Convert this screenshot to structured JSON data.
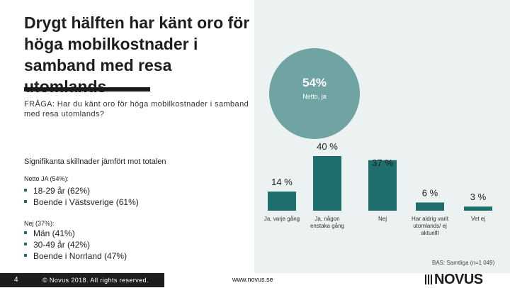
{
  "title": "Drygt hälften har känt oro för höga mobilkostnader i samband med resa utomlands",
  "question": "FRÅGA: Har du känt oro för höga mobilkostnader i samband med resa utomlands?",
  "highlight": {
    "value": "54%",
    "label": "Netto, ja"
  },
  "significance": {
    "heading": "Signifikanta skillnader jämfört mot totalen",
    "groups": [
      {
        "label": "Netto JA (54%):",
        "items": [
          "18-29 år (62%)",
          "Boende i Västsverige (61%)"
        ]
      },
      {
        "label": "Nej (37%):",
        "items": [
          "Män (41%)",
          "30-49 år (42%)",
          "Boende i Norrland (47%)"
        ]
      }
    ]
  },
  "chart_data": {
    "type": "bar",
    "categories": [
      "Ja, varje gång",
      "Ja, någon enstaka gång",
      "Nej",
      "Har aldrig varit utomlands/ ej aktuellt",
      "Vet ej"
    ],
    "values": [
      14,
      40,
      37,
      6,
      3
    ],
    "data_labels": [
      "14 %",
      "40 %",
      "37 %",
      "6 %",
      "3 %"
    ],
    "ylim": [
      0,
      40
    ],
    "color": "#1f6e6e",
    "title": "",
    "xlabel": "",
    "ylabel": ""
  },
  "base_note": "BAS: Samtliga (n=1 049)",
  "footer": {
    "page_number": "4",
    "copyright": "© Novus 2018. All rights reserved.",
    "url": "www.novus.se",
    "logo": "NOVUS"
  },
  "colors": {
    "accent": "#1f6e6e",
    "circle": "#6fa4a3",
    "panel": "#ecf1f1",
    "dark": "#1d1d1d"
  }
}
